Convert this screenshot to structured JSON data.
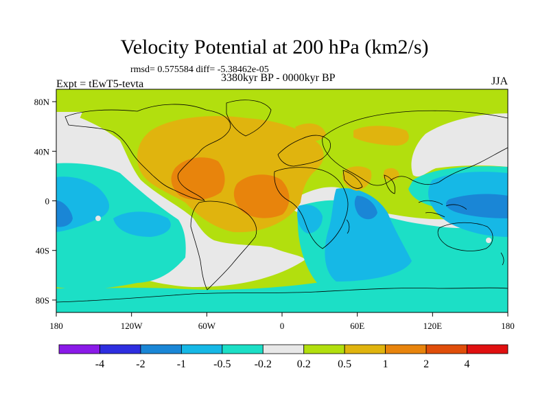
{
  "title": "Velocity Potential at 200 hPa (km2/s)",
  "stats_text": "rmsd= 0.575584 diff= -5.38462e-05",
  "period": "3380kyr BP - 0000kyr BP",
  "experiment": "Expt = tEwT5-tevta",
  "season": "JJA",
  "projection": "cylindrical equidistant",
  "lon_ticks": [
    "180",
    "120W",
    "60W",
    "0",
    "60E",
    "120E",
    "180"
  ],
  "lat_ticks": [
    "80N",
    "40N",
    "0",
    "40S",
    "80S"
  ],
  "colorbar": {
    "labels": [
      "-4",
      "-2",
      "-1",
      "-0.5",
      "-0.2",
      "0.2",
      "0.5",
      "1",
      "2",
      "4"
    ],
    "colors": [
      "#8a1ae8",
      "#2e2ee0",
      "#1a86d6",
      "#16b8e6",
      "#1cdfc6",
      "#e8e8e8",
      "#b2df0e",
      "#e0b40e",
      "#e8840c",
      "#e04e0a",
      "#e01010"
    ]
  }
}
